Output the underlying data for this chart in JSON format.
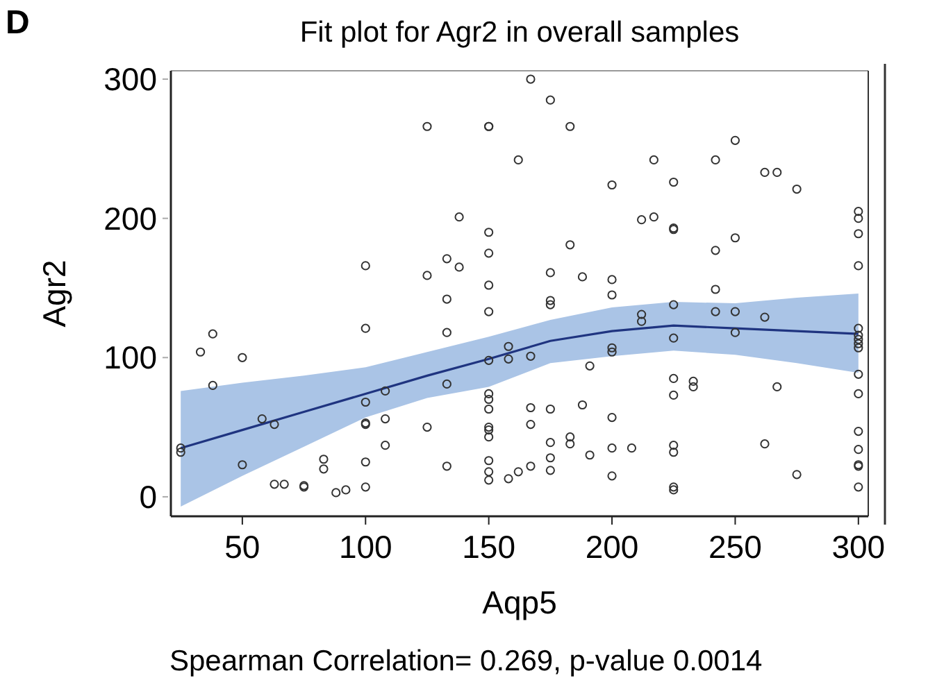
{
  "chart_data": {
    "type": "scatter",
    "title": "Fit plot for Agr2 in overall samples",
    "xlabel": "Aqp5",
    "ylabel": "Agr2",
    "annotations": [
      "D",
      "Spearman Correlation= 0.269, p-value 0.0014"
    ],
    "xlim": [
      21,
      304
    ],
    "ylim": [
      -14,
      306
    ],
    "xticks": [
      50,
      100,
      150,
      200,
      250,
      300
    ],
    "yticks": [
      0,
      100,
      200,
      300
    ],
    "grid": false,
    "series": [
      {
        "type": "line",
        "color": "#1f3480",
        "marker": "none",
        "x": [
          25,
          50,
          75,
          100,
          125,
          150,
          175,
          200,
          225,
          250,
          275,
          300
        ],
        "values": [
          35,
          48,
          61,
          74,
          87,
          99,
          112,
          119,
          123,
          121,
          119,
          117
        ],
        "lower": [
          -7,
          15,
          36,
          57,
          71,
          79,
          96,
          101,
          105,
          102,
          96,
          89
        ],
        "upper": [
          76,
          82,
          87,
          93,
          104,
          115,
          127,
          136,
          140,
          139,
          143,
          146
        ]
      },
      {
        "color": "#333333",
        "marker": "circle",
        "x": [
          25,
          25,
          33,
          38,
          38,
          50,
          50,
          58,
          63,
          63,
          67,
          75,
          75,
          83,
          83,
          88,
          92,
          100,
          100,
          100,
          100,
          100,
          100,
          100,
          108,
          108,
          108,
          125,
          125,
          125,
          133,
          133,
          133,
          133,
          133,
          138,
          138,
          150,
          150,
          150,
          150,
          150,
          150,
          150,
          150,
          150,
          150,
          150,
          150,
          150,
          150,
          150,
          150,
          158,
          158,
          158,
          162,
          162,
          167,
          167,
          167,
          167,
          167,
          175,
          175,
          175,
          175,
          175,
          175,
          175,
          175,
          183,
          183,
          183,
          183,
          188,
          188,
          191,
          191,
          200,
          200,
          200,
          200,
          200,
          200,
          200,
          200,
          208,
          212,
          212,
          212,
          217,
          217,
          225,
          225,
          225,
          225,
          225,
          225,
          225,
          225,
          225,
          225,
          225,
          233,
          233,
          242,
          242,
          242,
          242,
          250,
          250,
          250,
          250,
          262,
          262,
          262,
          267,
          267,
          275,
          275,
          300,
          300,
          300,
          300,
          300,
          300,
          300,
          300,
          300,
          300,
          300,
          300,
          300,
          300,
          300,
          300
        ],
        "values": [
          35,
          32,
          104,
          117,
          80,
          100,
          23,
          56,
          52,
          9,
          9,
          8,
          7,
          27,
          20,
          3,
          5,
          166,
          121,
          68,
          53,
          52,
          25,
          7,
          76,
          56,
          37,
          266,
          159,
          50,
          171,
          142,
          118,
          81,
          22,
          201,
          165,
          266,
          266,
          190,
          175,
          152,
          133,
          98,
          74,
          70,
          63,
          50,
          48,
          43,
          26,
          18,
          12,
          108,
          99,
          13,
          242,
          18,
          300,
          101,
          64,
          52,
          22,
          285,
          161,
          141,
          138,
          63,
          39,
          28,
          19,
          266,
          181,
          43,
          38,
          158,
          66,
          94,
          30,
          224,
          156,
          145,
          107,
          104,
          57,
          35,
          15,
          35,
          199,
          131,
          126,
          242,
          201,
          226,
          193,
          192,
          138,
          114,
          85,
          73,
          37,
          32,
          7,
          5,
          83,
          79,
          242,
          177,
          149,
          133,
          256,
          186,
          133,
          118,
          233,
          129,
          38,
          233,
          79,
          221,
          16,
          205,
          200,
          189,
          166,
          121,
          116,
          113,
          110,
          107,
          88,
          74,
          47,
          34,
          23,
          22,
          7
        ]
      }
    ]
  }
}
